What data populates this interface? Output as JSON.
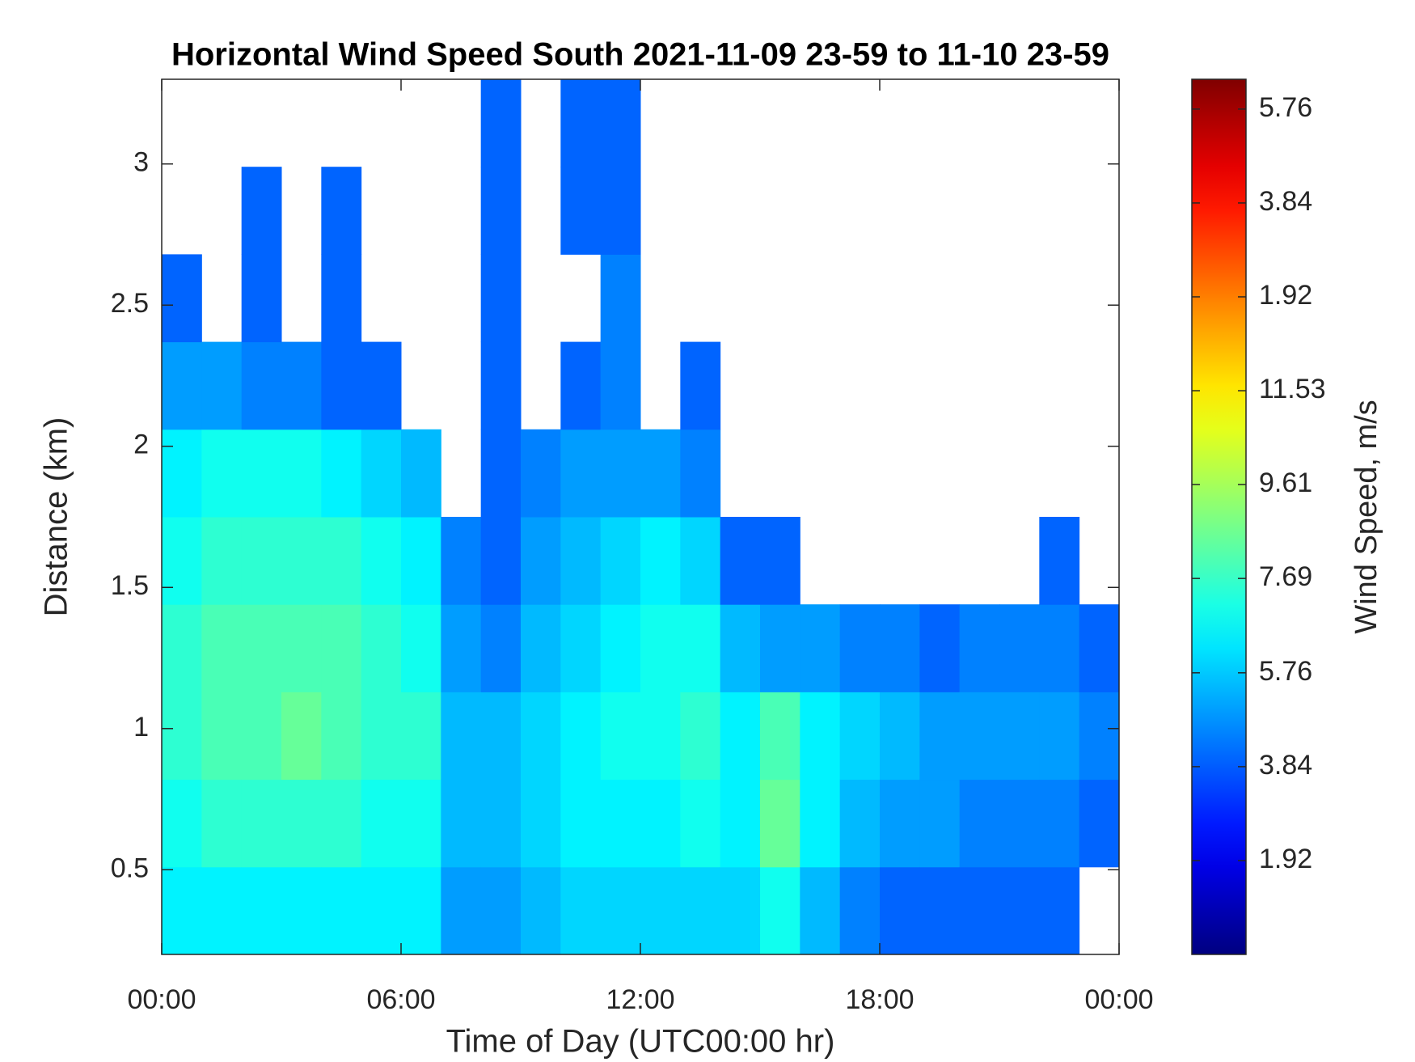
{
  "chart_data": {
    "type": "heatmap",
    "title": "Horizontal Wind Speed South 2021-11-09 23-59 to 11-10 23-59",
    "x_label": "Time of Day (UTC00:00 hr)",
    "y_label": "Distance (km)",
    "colorbar_label": "Wind Speed, m/s",
    "colormap": "jet",
    "xlim": [
      0,
      24
    ],
    "ylim": [
      0.2,
      3.3
    ],
    "clim": [
      0,
      17.9
    ],
    "xticks": [
      {
        "value": 0,
        "label": "00:00"
      },
      {
        "value": 6,
        "label": "06:00"
      },
      {
        "value": 12,
        "label": "12:00"
      },
      {
        "value": 18,
        "label": "18:00"
      },
      {
        "value": 24,
        "label": "00:00"
      }
    ],
    "yticks": [
      0.5,
      1,
      1.5,
      2,
      2.5,
      3
    ],
    "cticks": [
      1.92,
      3.84,
      5.76,
      7.69,
      9.61,
      11.53,
      {
        "value": 13.45,
        "label": "1.92"
      },
      {
        "value": 15.37,
        "label": "3.84"
      },
      {
        "value": 17.29,
        "label": "5.76"
      }
    ],
    "x_bins": [
      0,
      1,
      2,
      3,
      4,
      5,
      6,
      7,
      8,
      9,
      10,
      11,
      12,
      13,
      14,
      15,
      16,
      17,
      18,
      19,
      20,
      21,
      22,
      23,
      24
    ],
    "y_bins": [
      0.2,
      0.51,
      0.82,
      1.13,
      1.44,
      1.75,
      2.06,
      2.37,
      2.68,
      2.99,
      3.3
    ],
    "z": [
      [
        6.5,
        7,
        7.5,
        7.5,
        7,
        6.5,
        5,
        4,
        null,
        null
      ],
      [
        6.5,
        7.5,
        8,
        8,
        7.5,
        7,
        5,
        null,
        null,
        null
      ],
      [
        6.5,
        7.5,
        8,
        8,
        7.5,
        7,
        4.5,
        4,
        4,
        null
      ],
      [
        6.5,
        7.5,
        8.5,
        8,
        7.5,
        7,
        4.5,
        null,
        null,
        null
      ],
      [
        6.5,
        7.5,
        8,
        8,
        7.5,
        6.5,
        4,
        4,
        4,
        null
      ],
      [
        6.5,
        7,
        7.5,
        7.5,
        7,
        6,
        4,
        null,
        null,
        null
      ],
      [
        6.5,
        7,
        7.5,
        7,
        6.5,
        5.5,
        null,
        null,
        null,
        null
      ],
      [
        5,
        5.5,
        5.5,
        5,
        4.5,
        null,
        null,
        null,
        null,
        null
      ],
      [
        5,
        5.5,
        5.5,
        4.5,
        4,
        4,
        4,
        4,
        4,
        4
      ],
      [
        5.5,
        6,
        6,
        5.5,
        5,
        4.5,
        null,
        null,
        null,
        null
      ],
      [
        6,
        6.5,
        6.5,
        6,
        5.5,
        5,
        4,
        null,
        4,
        4
      ],
      [
        6,
        6.5,
        7,
        6.5,
        6,
        5,
        4.5,
        4.5,
        4,
        4
      ],
      [
        6,
        6.5,
        7,
        7,
        6.5,
        5,
        null,
        null,
        null,
        null
      ],
      [
        6,
        7,
        7.5,
        7,
        6,
        4.5,
        4,
        null,
        null,
        null
      ],
      [
        6,
        6.5,
        6.5,
        5.5,
        4,
        null,
        null,
        null,
        null,
        null
      ],
      [
        7,
        8.5,
        8,
        5,
        4,
        null,
        null,
        null,
        null,
        null
      ],
      [
        5.5,
        6.5,
        6.5,
        5,
        null,
        null,
        null,
        null,
        null,
        null
      ],
      [
        4.5,
        5.5,
        6,
        4.5,
        null,
        null,
        null,
        null,
        null,
        null
      ],
      [
        4,
        5,
        5.5,
        4.5,
        null,
        null,
        null,
        null,
        null,
        null
      ],
      [
        4,
        5,
        5,
        4,
        null,
        null,
        null,
        null,
        null,
        null
      ],
      [
        4,
        4.5,
        5,
        4.5,
        null,
        null,
        null,
        null,
        null,
        null
      ],
      [
        4,
        4.5,
        5,
        4.5,
        null,
        null,
        null,
        null,
        null,
        null
      ],
      [
        4,
        4.5,
        5,
        4.5,
        4,
        null,
        null,
        null,
        null,
        null
      ],
      [
        null,
        4,
        4.5,
        4,
        null,
        null,
        null,
        null,
        null,
        null
      ]
    ]
  }
}
